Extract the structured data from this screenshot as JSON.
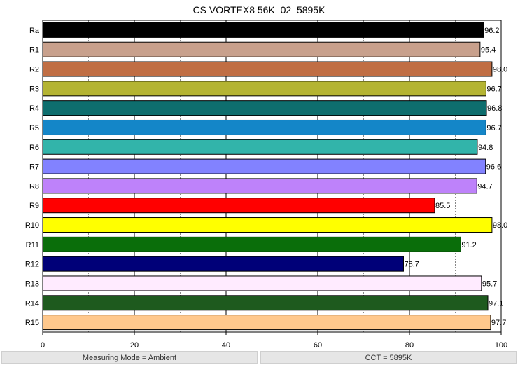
{
  "chart_data": {
    "type": "bar",
    "orientation": "horizontal",
    "title": "CS VORTEX8 56K_02_5895K",
    "xlabel": "",
    "ylabel": "",
    "xlim": [
      0,
      100
    ],
    "x_ticks": [
      "0",
      "20",
      "40",
      "60",
      "80",
      "100"
    ],
    "grid": true,
    "categories": [
      "Ra",
      "R1",
      "R2",
      "R3",
      "R4",
      "R5",
      "R6",
      "R7",
      "R8",
      "R9",
      "R10",
      "R11",
      "R12",
      "R13",
      "R14",
      "R15"
    ],
    "values": [
      96.2,
      95.4,
      98.0,
      96.7,
      96.8,
      96.7,
      94.8,
      96.6,
      94.7,
      85.5,
      98.0,
      91.2,
      78.7,
      95.7,
      97.1,
      97.7
    ],
    "value_labels": [
      "96.2",
      "95.4",
      "98.0",
      "96.7",
      "96.8",
      "96.7",
      "94.8",
      "96.6",
      "94.7",
      "85.5",
      "98.0",
      "91.2",
      "78.7",
      "95.7",
      "97.1",
      "97.7"
    ],
    "colors": [
      "#000000",
      "#c8a08c",
      "#c06e44",
      "#b4b432",
      "#0e6e6e",
      "#1486c8",
      "#32b4aa",
      "#8282ff",
      "#be82fa",
      "#ff0000",
      "#ffff00",
      "#0a6e0a",
      "#000078",
      "#ffebff",
      "#1e5a1e",
      "#ffc88c"
    ]
  },
  "footer": {
    "left": "Measuring Mode = Ambient",
    "right": "CCT = 5895K"
  }
}
